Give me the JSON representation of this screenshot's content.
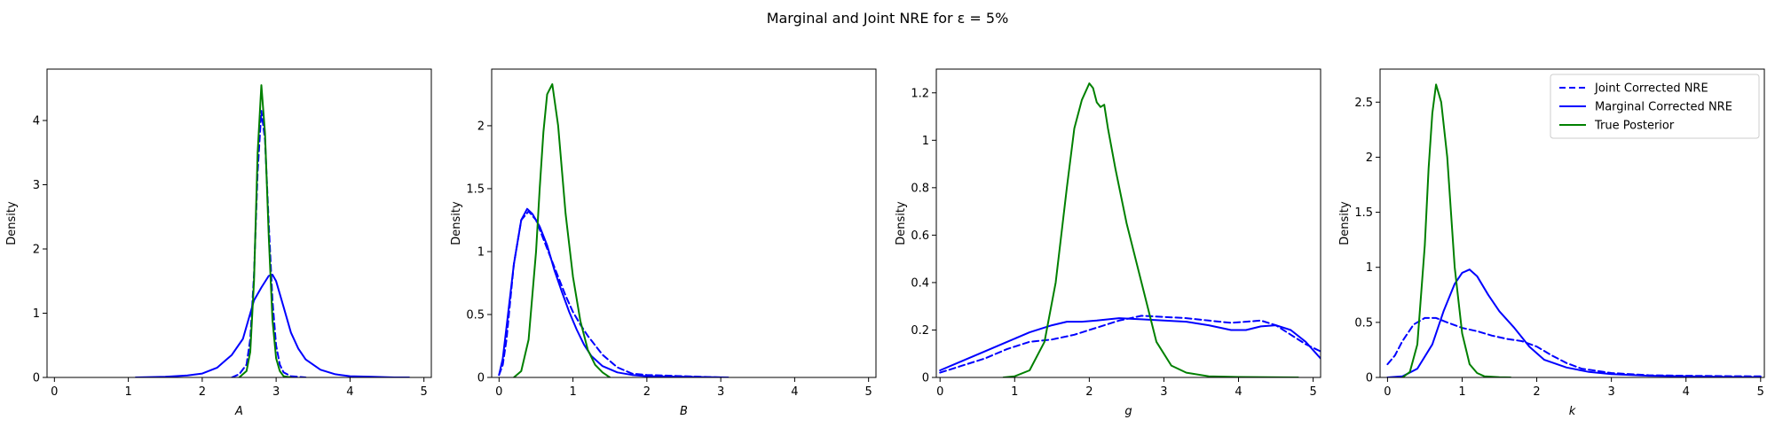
{
  "title": "Marginal and Joint NRE for ε = 5%",
  "chart_data": [
    {
      "type": "line",
      "xlabel": "A",
      "ylabel": "Density",
      "xlim": [
        -0.1,
        5.1
      ],
      "ylim": [
        0,
        4.8
      ],
      "xticks": [
        0,
        1,
        2,
        3,
        4,
        5
      ],
      "yticks": [
        0,
        1,
        2,
        3,
        4
      ],
      "series": [
        {
          "key": "joint",
          "color": "#0000ff",
          "dash": "dashed",
          "x": [
            2.4,
            2.5,
            2.6,
            2.65,
            2.7,
            2.75,
            2.8,
            2.85,
            2.9,
            2.95,
            3.0,
            3.05,
            3.1,
            3.2,
            3.4
          ],
          "y": [
            0,
            0.05,
            0.2,
            0.6,
            1.6,
            3.2,
            4.15,
            3.7,
            2.4,
            1.2,
            0.5,
            0.2,
            0.08,
            0.02,
            0
          ]
        },
        {
          "key": "marginal",
          "color": "#0000ff",
          "dash": "solid",
          "x": [
            1.1,
            1.5,
            1.8,
            2.0,
            2.2,
            2.4,
            2.55,
            2.7,
            2.8,
            2.9,
            2.95,
            3.0,
            3.1,
            3.2,
            3.3,
            3.4,
            3.6,
            3.8,
            4.0,
            4.3,
            4.6,
            4.8
          ],
          "y": [
            0,
            0.01,
            0.03,
            0.06,
            0.15,
            0.35,
            0.6,
            1.2,
            1.4,
            1.58,
            1.6,
            1.5,
            1.1,
            0.7,
            0.45,
            0.28,
            0.12,
            0.05,
            0.02,
            0.01,
            0,
            0
          ]
        },
        {
          "key": "true",
          "color": "#008000",
          "dash": "solid",
          "x": [
            2.5,
            2.6,
            2.65,
            2.7,
            2.75,
            2.8,
            2.85,
            2.9,
            2.95,
            3.0,
            3.05,
            3.1,
            3.2
          ],
          "y": [
            0,
            0.1,
            0.4,
            1.5,
            3.5,
            4.55,
            3.8,
            2.2,
            0.9,
            0.3,
            0.1,
            0.02,
            0
          ]
        }
      ]
    },
    {
      "type": "line",
      "xlabel": "B",
      "ylabel": "Density",
      "xlim": [
        -0.1,
        5.1
      ],
      "ylim": [
        0,
        2.45
      ],
      "xticks": [
        0,
        1,
        2,
        3,
        4,
        5
      ],
      "yticks": [
        0,
        0.5,
        1.0,
        1.5,
        2.0
      ],
      "series": [
        {
          "key": "joint",
          "color": "#0000ff",
          "dash": "dashed",
          "x": [
            0.0,
            0.05,
            0.1,
            0.15,
            0.2,
            0.3,
            0.4,
            0.5,
            0.6,
            0.7,
            0.8,
            0.9,
            1.0,
            1.1,
            1.2,
            1.4,
            1.6,
            1.8,
            2.0,
            2.5,
            3.0
          ],
          "y": [
            0.02,
            0.1,
            0.3,
            0.6,
            0.9,
            1.25,
            1.32,
            1.25,
            1.1,
            0.95,
            0.8,
            0.65,
            0.52,
            0.42,
            0.33,
            0.18,
            0.08,
            0.03,
            0.02,
            0.01,
            0
          ]
        },
        {
          "key": "marginal",
          "color": "#0000ff",
          "dash": "solid",
          "x": [
            0.0,
            0.05,
            0.1,
            0.2,
            0.3,
            0.38,
            0.45,
            0.55,
            0.65,
            0.75,
            0.85,
            0.95,
            1.05,
            1.15,
            1.25,
            1.4,
            1.6,
            1.8,
            2.0,
            2.5,
            3.1
          ],
          "y": [
            0.02,
            0.15,
            0.4,
            0.9,
            1.25,
            1.34,
            1.3,
            1.2,
            1.05,
            0.85,
            0.68,
            0.52,
            0.38,
            0.26,
            0.17,
            0.09,
            0.04,
            0.02,
            0.01,
            0.005,
            0
          ]
        },
        {
          "key": "true",
          "color": "#008000",
          "dash": "solid",
          "x": [
            0.2,
            0.3,
            0.4,
            0.5,
            0.55,
            0.6,
            0.65,
            0.72,
            0.8,
            0.85,
            0.9,
            1.0,
            1.1,
            1.2,
            1.3,
            1.4,
            1.5
          ],
          "y": [
            0,
            0.05,
            0.3,
            1.0,
            1.5,
            1.95,
            2.25,
            2.33,
            2.0,
            1.65,
            1.3,
            0.8,
            0.45,
            0.22,
            0.1,
            0.04,
            0
          ]
        }
      ]
    },
    {
      "type": "line",
      "xlabel": "g",
      "ylabel": "Density",
      "xlim": [
        -0.05,
        5.1
      ],
      "ylim": [
        0,
        1.3
      ],
      "xticks": [
        0,
        1,
        2,
        3,
        4,
        5
      ],
      "yticks": [
        0,
        0.2,
        0.4,
        0.6,
        0.8,
        1.0,
        1.2
      ],
      "series": [
        {
          "key": "joint",
          "color": "#0000ff",
          "dash": "dashed",
          "x": [
            0.0,
            0.3,
            0.6,
            0.9,
            1.2,
            1.5,
            1.8,
            2.1,
            2.4,
            2.7,
            3.0,
            3.3,
            3.6,
            3.9,
            4.1,
            4.3,
            4.5,
            4.7,
            4.9,
            5.1
          ],
          "y": [
            0.02,
            0.05,
            0.08,
            0.12,
            0.15,
            0.16,
            0.18,
            0.21,
            0.24,
            0.26,
            0.255,
            0.25,
            0.24,
            0.23,
            0.235,
            0.24,
            0.22,
            0.18,
            0.14,
            0.11
          ]
        },
        {
          "key": "marginal",
          "color": "#0000ff",
          "dash": "solid",
          "x": [
            0.0,
            0.3,
            0.6,
            0.9,
            1.2,
            1.5,
            1.7,
            1.9,
            2.1,
            2.4,
            2.7,
            3.0,
            3.3,
            3.6,
            3.9,
            4.1,
            4.3,
            4.5,
            4.7,
            4.9,
            5.1
          ],
          "y": [
            0.03,
            0.07,
            0.11,
            0.15,
            0.19,
            0.22,
            0.235,
            0.235,
            0.24,
            0.25,
            0.245,
            0.24,
            0.235,
            0.22,
            0.2,
            0.2,
            0.215,
            0.22,
            0.2,
            0.15,
            0.08
          ]
        },
        {
          "key": "true",
          "color": "#008000",
          "dash": "solid",
          "x": [
            0.85,
            1.0,
            1.2,
            1.4,
            1.55,
            1.7,
            1.8,
            1.9,
            2.0,
            2.05,
            2.1,
            2.15,
            2.2,
            2.25,
            2.35,
            2.5,
            2.7,
            2.9,
            3.1,
            3.3,
            3.6,
            4.0,
            4.8
          ],
          "y": [
            0,
            0.005,
            0.03,
            0.15,
            0.4,
            0.8,
            1.05,
            1.17,
            1.24,
            1.22,
            1.16,
            1.14,
            1.15,
            1.05,
            0.88,
            0.65,
            0.4,
            0.15,
            0.05,
            0.02,
            0.005,
            0.002,
            0
          ]
        }
      ]
    },
    {
      "type": "line",
      "xlabel": "k",
      "ylabel": "Density",
      "xlim": [
        -0.1,
        5.05
      ],
      "ylim": [
        0,
        2.8
      ],
      "xticks": [
        0,
        1,
        2,
        3,
        4,
        5
      ],
      "yticks": [
        0,
        0.5,
        1.0,
        1.5,
        2.0,
        2.5
      ],
      "series": [
        {
          "key": "joint",
          "color": "#0000ff",
          "dash": "dashed",
          "x": [
            0.0,
            0.1,
            0.2,
            0.35,
            0.5,
            0.65,
            0.8,
            1.0,
            1.2,
            1.4,
            1.6,
            1.8,
            2.0,
            2.2,
            2.4,
            2.6,
            3.0,
            3.5,
            4.0,
            4.5,
            5.0
          ],
          "y": [
            0.12,
            0.2,
            0.33,
            0.48,
            0.54,
            0.54,
            0.5,
            0.45,
            0.42,
            0.38,
            0.35,
            0.33,
            0.28,
            0.2,
            0.13,
            0.08,
            0.04,
            0.02,
            0.015,
            0.012,
            0.01
          ]
        },
        {
          "key": "marginal",
          "color": "#0000ff",
          "dash": "solid",
          "x": [
            0.0,
            0.2,
            0.4,
            0.6,
            0.75,
            0.9,
            1.0,
            1.1,
            1.2,
            1.35,
            1.5,
            1.7,
            1.9,
            2.1,
            2.4,
            2.7,
            3.0,
            3.5,
            4.0,
            4.5,
            5.0
          ],
          "y": [
            0.0,
            0.01,
            0.08,
            0.3,
            0.6,
            0.85,
            0.95,
            0.98,
            0.92,
            0.75,
            0.6,
            0.45,
            0.28,
            0.16,
            0.09,
            0.05,
            0.03,
            0.015,
            0.01,
            0.005,
            0.002
          ]
        },
        {
          "key": "true",
          "color": "#008000",
          "dash": "solid",
          "x": [
            0.2,
            0.3,
            0.4,
            0.5,
            0.55,
            0.6,
            0.65,
            0.72,
            0.8,
            0.85,
            0.9,
            1.0,
            1.1,
            1.2,
            1.3,
            1.5,
            1.65
          ],
          "y": [
            0.0,
            0.05,
            0.3,
            1.2,
            1.9,
            2.4,
            2.66,
            2.5,
            2.0,
            1.5,
            1.0,
            0.4,
            0.12,
            0.04,
            0.01,
            0.002,
            0
          ]
        }
      ]
    }
  ],
  "legend": {
    "placement": "upper-right",
    "entries": [
      {
        "key": "joint",
        "label": "Joint Corrected NRE",
        "color": "#0000ff",
        "dash": "dashed"
      },
      {
        "key": "marginal",
        "label": "Marginal Corrected NRE",
        "color": "#0000ff",
        "dash": "solid"
      },
      {
        "key": "true",
        "label": "True Posterior",
        "color": "#008000",
        "dash": "solid"
      }
    ]
  }
}
